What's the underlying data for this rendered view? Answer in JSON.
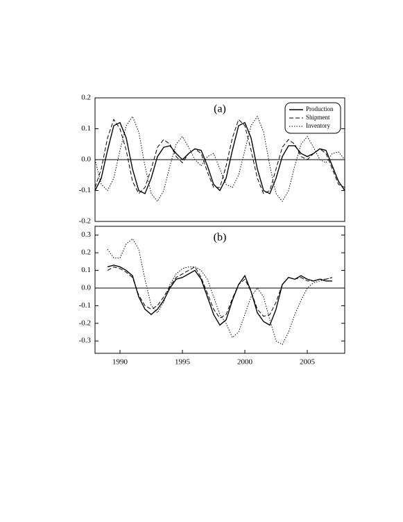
{
  "chart_data": [
    {
      "type": "line",
      "title": "(a)",
      "x": [
        1988,
        1988.5,
        1989,
        1989.5,
        1990,
        1990.5,
        1991,
        1991.5,
        1992,
        1992.5,
        1993,
        1993.5,
        1994,
        1994.5,
        1995,
        1995.5,
        1996,
        1996.5,
        1997,
        1997.5,
        1998,
        1998.5,
        1999,
        1999.5,
        2000,
        2000.5,
        2001,
        2001.5,
        2002,
        2002.5,
        2003,
        2003.5,
        2004,
        2004.5,
        2005,
        2005.5,
        2006,
        2006.5,
        2007,
        2007.5,
        2008
      ],
      "series": [
        {
          "name": "Production",
          "color": "#000000",
          "style": "solid",
          "values": [
            -0.1,
            -0.06,
            0.03,
            0.11,
            0.12,
            0.07,
            -0.03,
            -0.1,
            -0.11,
            -0.06,
            0.01,
            0.04,
            0.045,
            0.02,
            0.0,
            0.02,
            0.035,
            0.03,
            -0.02,
            -0.08,
            -0.1,
            -0.06,
            0.03,
            0.11,
            0.12,
            0.07,
            -0.03,
            -0.1,
            -0.11,
            -0.06,
            0.01,
            0.045,
            0.045,
            0.02,
            0.01,
            0.02,
            0.035,
            0.03,
            -0.02,
            -0.07,
            -0.1
          ]
        },
        {
          "name": "Shipment",
          "color": "#000000",
          "style": "dashed",
          "values": [
            -0.09,
            -0.03,
            0.07,
            0.13,
            0.1,
            0.03,
            -0.07,
            -0.11,
            -0.09,
            -0.03,
            0.04,
            0.065,
            0.05,
            0.01,
            -0.01,
            0.02,
            0.035,
            0.02,
            -0.04,
            -0.09,
            -0.09,
            -0.02,
            0.07,
            0.13,
            0.11,
            0.03,
            -0.06,
            -0.11,
            -0.1,
            -0.03,
            0.04,
            0.065,
            0.05,
            0.01,
            0.0,
            0.02,
            0.035,
            0.02,
            -0.03,
            -0.08,
            -0.09
          ]
        },
        {
          "name": "Inventory",
          "color": "#000000",
          "style": "dotted",
          "values": [
            0.0,
            -0.08,
            -0.1,
            -0.06,
            0.03,
            0.11,
            0.14,
            0.09,
            -0.02,
            -0.11,
            -0.135,
            -0.1,
            -0.02,
            0.05,
            0.075,
            0.04,
            0.0,
            -0.02,
            0.01,
            0.02,
            -0.03,
            -0.08,
            -0.09,
            -0.05,
            0.03,
            0.11,
            0.14,
            0.09,
            -0.02,
            -0.11,
            -0.135,
            -0.1,
            -0.02,
            0.05,
            0.075,
            0.04,
            0.0,
            -0.01,
            0.02,
            0.025,
            0.0
          ]
        }
      ],
      "xlim": [
        1988,
        2008
      ],
      "ylim": [
        -0.2,
        0.2
      ],
      "yticks": [
        -0.2,
        -0.1,
        {
          "value": 0,
          "label": "0.0"
        },
        0.1,
        0.2
      ],
      "zero_line": true,
      "legend": "top-right"
    },
    {
      "type": "line",
      "title": "(b)",
      "x": [
        1989,
        1989.5,
        1990,
        1990.5,
        1991,
        1991.5,
        1992,
        1992.5,
        1993,
        1993.5,
        1994,
        1994.5,
        1995,
        1995.5,
        1996,
        1996.5,
        1997,
        1997.5,
        1998,
        1998.5,
        1999,
        1999.5,
        2000,
        2000.5,
        2001,
        2001.5,
        2002,
        2002.5,
        2003,
        2003.5,
        2004,
        2004.5,
        2005,
        2005.5,
        2006,
        2006.5,
        2007
      ],
      "series": [
        {
          "color": "#000000",
          "style": "solid",
          "values": [
            0.12,
            0.13,
            0.12,
            0.1,
            0.07,
            -0.05,
            -0.12,
            -0.15,
            -0.12,
            -0.07,
            0.0,
            0.05,
            0.06,
            0.08,
            0.1,
            0.05,
            -0.05,
            -0.15,
            -0.21,
            -0.18,
            -0.07,
            0.02,
            0.07,
            -0.02,
            -0.14,
            -0.19,
            -0.21,
            -0.12,
            0.02,
            0.06,
            0.05,
            0.07,
            0.05,
            0.04,
            0.05,
            0.04,
            0.04
          ]
        },
        {
          "color": "#000000",
          "style": "dashed",
          "values": [
            0.1,
            0.12,
            0.11,
            0.09,
            0.06,
            -0.04,
            -0.1,
            -0.12,
            -0.1,
            -0.05,
            0.01,
            0.06,
            0.08,
            0.1,
            0.12,
            0.06,
            -0.03,
            -0.12,
            -0.17,
            -0.15,
            -0.06,
            0.02,
            0.05,
            -0.02,
            -0.12,
            -0.16,
            -0.15,
            -0.08,
            0.02,
            0.06,
            0.05,
            0.06,
            0.04,
            0.04,
            0.05,
            0.05,
            0.06
          ]
        },
        {
          "color": "#000000",
          "style": "dotted",
          "values": [
            0.22,
            0.17,
            0.17,
            0.25,
            0.28,
            0.22,
            0.05,
            -0.1,
            -0.14,
            -0.08,
            0.02,
            0.08,
            0.11,
            0.12,
            0.12,
            0.1,
            0.05,
            -0.05,
            -0.15,
            -0.2,
            -0.28,
            -0.25,
            -0.15,
            -0.05,
            0.0,
            -0.05,
            -0.18,
            -0.3,
            -0.32,
            -0.25,
            -0.15,
            -0.07,
            0.0,
            0.03,
            0.04,
            0.05,
            0.06
          ]
        }
      ],
      "xlim": [
        1988,
        2008
      ],
      "ylim": [
        -0.37,
        0.35
      ],
      "xticks": [
        1990,
        1995,
        2000,
        2005
      ],
      "yticks": [
        -0.3,
        -0.2,
        -0.1,
        {
          "value": 0,
          "label": "0.0"
        },
        0.1,
        0.2,
        0.3
      ],
      "zero_line": true
    }
  ]
}
